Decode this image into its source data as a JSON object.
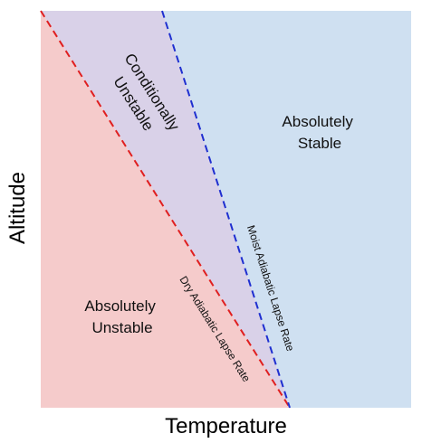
{
  "axes": {
    "x_label": "Temperature",
    "y_label": "Altitude"
  },
  "regions": {
    "absolutely_unstable": {
      "lines": [
        "Absolutely",
        "Unstable"
      ],
      "color": "#f5cbcb"
    },
    "conditionally_unstable": {
      "lines": [
        "Conditionally",
        "Unstable"
      ],
      "color": "#d9d1e8"
    },
    "absolutely_stable": {
      "lines": [
        "Absolutely",
        "Stable"
      ],
      "color": "#cfe0f1"
    }
  },
  "lapse_rates": {
    "dry": {
      "label": "Dry Adiabatic Lapse Rate",
      "color": "#e01f1f"
    },
    "moist": {
      "label": "Moist Adiabatic Lapse Rate",
      "color": "#1f2fd0"
    }
  }
}
